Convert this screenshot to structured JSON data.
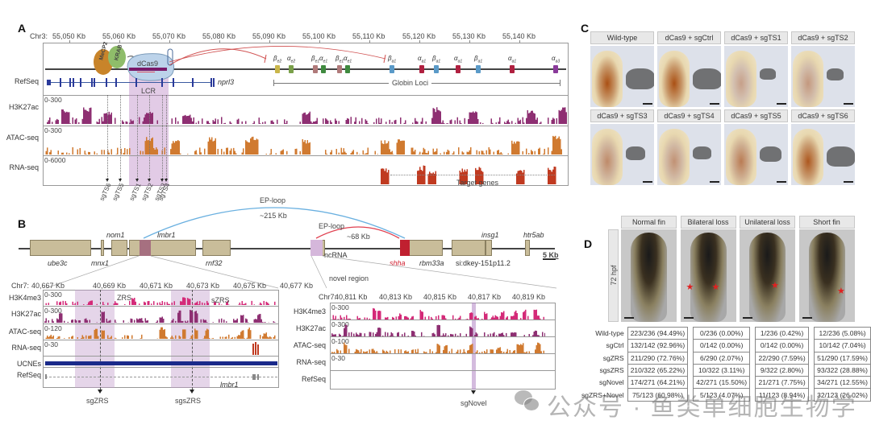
{
  "panelA": {
    "letter": "A",
    "chrom_label": "Chr3:",
    "ticks": [
      "55,050 Kb",
      "55,060 Kb",
      "55,070 Kb",
      "55,080 Kb",
      "55,090 Kb",
      "55,100 Kb",
      "55,110 Kb",
      "55,120 Kb",
      "55,130 Kb",
      "55,140 Kb"
    ],
    "proteins": {
      "mecp2": "MeCP2",
      "krab": "KRAB",
      "dcas9": "dCas9"
    },
    "refseq_label": "RefSeq",
    "refseq_gene": "nprl3",
    "lcr_label": "LCR",
    "globin_label": "Globin Loci",
    "globin_genes": [
      {
        "name": "βe2",
        "color": "#c9b64a"
      },
      {
        "name": "αe2",
        "color": "#7aa04a"
      },
      {
        "name": "βe1",
        "color": "#b07a7a"
      },
      {
        "name": "αe1",
        "color": "#3f8a3f"
      },
      {
        "name": "βe1",
        "color": "#b07a7a"
      },
      {
        "name": "αe1",
        "color": "#3f8a3f"
      },
      {
        "name": "βa1",
        "color": "#5a9ac8"
      },
      {
        "name": "αa1",
        "color": "#b02040"
      },
      {
        "name": "βa1",
        "color": "#5a9ac8"
      },
      {
        "name": "αa1",
        "color": "#b02040"
      },
      {
        "name": "βa1",
        "color": "#5a9ac8"
      },
      {
        "name": "αa1",
        "color": "#b02040"
      },
      {
        "name": "αa3",
        "color": "#8a3a9a"
      }
    ],
    "tracks": [
      {
        "name": "H3K27ac",
        "range": "0-300",
        "color": "#8e2f72"
      },
      {
        "name": "ATAC-seq",
        "range": "0-300",
        "color": "#d07a30"
      },
      {
        "name": "RNA-seq",
        "range": "0-6000",
        "color": "#c03a20"
      }
    ],
    "sgRNAs": [
      "sgTS6",
      "sgTS5",
      "sgTS1",
      "sgTS2",
      "sgTS3",
      "sgTS4"
    ],
    "target_label": "Target genes"
  },
  "panelB": {
    "letter": "B",
    "loop1": {
      "label": "EP-loop",
      "distance": "~215 Kb"
    },
    "loop2": {
      "label": "EP-loop",
      "distance": "~68 Kb"
    },
    "genes_top": [
      "nom1",
      "lmbr1",
      "insg1",
      "htr5ab"
    ],
    "genes_bottom": [
      "ube3c",
      "mnx1",
      "rnf32",
      "ncRNA",
      "shha",
      "rbm33a",
      "si:dkey-151p11.2"
    ],
    "scale": "5 Kb",
    "novel_label": "novel region",
    "left": {
      "chrom_label": "Chr7:",
      "ticks": [
        "40,667 Kb",
        "40,669 Kb",
        "40,671 Kb",
        "40,673 Kb",
        "40,675 Kb",
        "40,677 Kb"
      ],
      "tracks": [
        {
          "name": "H3K4me3",
          "range": "0-300",
          "color": "#d42a78"
        },
        {
          "name": "H3K27ac",
          "range": "0-300",
          "color": "#8e2f72"
        },
        {
          "name": "ATAC-seq",
          "range": "0-120",
          "color": "#d07a30"
        },
        {
          "name": "RNA-seq",
          "range": "0-30",
          "color": "#c03a20"
        },
        {
          "name": "UCNEs",
          "range": "",
          "color": "#1a2a8a"
        },
        {
          "name": "RefSeq",
          "range": "",
          "color": "#888888"
        }
      ],
      "zrs_label": "ZRS",
      "szrs_label": "sZRS",
      "refseq_gene": "lmbr1",
      "sgRNAs": [
        "sgZRS",
        "sgsZRS"
      ]
    },
    "right": {
      "chrom_label": "Chr7:",
      "ticks": [
        "40,811 Kb",
        "40,813 Kb",
        "40,815 Kb",
        "40,817 Kb",
        "40,819 Kb"
      ],
      "tracks": [
        {
          "name": "H3K4me3",
          "range": "0-300",
          "color": "#d42a78"
        },
        {
          "name": "H3K27ac",
          "range": "0-300",
          "color": "#8e2f72"
        },
        {
          "name": "ATAC-seq",
          "range": "0-100",
          "color": "#d07a30"
        },
        {
          "name": "RNA-seq",
          "range": "0-30",
          "color": "#c03a20"
        },
        {
          "name": "RefSeq",
          "range": "",
          "color": "#888888"
        }
      ],
      "sgRNA": "sgNovel"
    }
  },
  "panelC": {
    "letter": "C",
    "conditions": [
      "Wild-type",
      "dCas9 + sgCtrl",
      "dCas9 + sgTS1",
      "dCas9 + sgTS2",
      "dCas9 + sgTS3",
      "dCas9 + sgTS4",
      "dCas9 + sgTS5",
      "dCas9 + sgTS6"
    ]
  },
  "panelD": {
    "letter": "D",
    "stage": "72 hpf",
    "phenotypes": [
      "Normal fin",
      "Bilateral loss",
      "Unilateral loss",
      "Short fin"
    ],
    "table": [
      {
        "group": "Wild-type",
        "values": [
          "223/236 (94.49%)",
          "0/236 (0.00%)",
          "1/236 (0.42%)",
          "12/236 (5.08%)"
        ]
      },
      {
        "group": "sgCtrl",
        "values": [
          "132/142 (92.96%)",
          "0/142 (0.00%)",
          "0/142 (0.00%)",
          "10/142 (7.04%)"
        ]
      },
      {
        "group": "sgZRS",
        "values": [
          "211/290 (72.76%)",
          "6/290 (2.07%)",
          "22/290 (7.59%)",
          "51/290 (17.59%)"
        ]
      },
      {
        "group": "sgsZRS",
        "values": [
          "210/322 (65.22%)",
          "10/322 (3.11%)",
          "9/322 (2.80%)",
          "93/322 (28.88%)"
        ]
      },
      {
        "group": "sgNovel",
        "values": [
          "174/271 (64.21%)",
          "42/271 (15.50%)",
          "21/271 (7.75%)",
          "34/271 (12.55%)"
        ]
      },
      {
        "group": "sgZRS+Novel",
        "values": [
          "75/123 (60.98%)",
          "5/123 (4.07%)",
          "11/123 (8.94%)",
          "32/123 (26.02%)"
        ]
      }
    ]
  },
  "watermark": "公众号 · 鱼类单细胞生物学"
}
